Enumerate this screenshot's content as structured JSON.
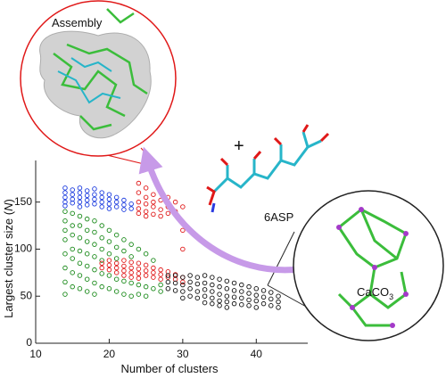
{
  "chart_data": {
    "type": "scatter",
    "xlabel": "Number of clusters",
    "ylabel": [
      "Largest cluster size (",
      "N",
      ")"
    ],
    "annotations": {
      "assembly": "Assembly",
      "plus": "+",
      "asp": "6ASP",
      "caco3": [
        "CaCO",
        "3"
      ]
    },
    "xlim": [
      10,
      47
    ],
    "xticks": [
      10,
      20,
      30,
      40
    ],
    "ylim": [
      0,
      180
    ],
    "yticks": [
      0,
      50,
      100,
      150
    ],
    "series": [
      {
        "color": "#1a8a1a",
        "x": [
          14,
          14,
          14,
          14,
          14,
          14,
          14,
          14,
          15,
          15,
          15,
          15,
          15,
          15,
          15,
          16,
          16,
          16,
          16,
          16,
          16,
          16,
          17,
          17,
          17,
          17,
          17,
          17,
          17,
          18,
          18,
          18,
          18,
          18,
          18,
          18,
          19,
          19,
          19,
          19,
          19,
          19,
          20,
          20,
          20,
          20,
          20,
          21,
          21,
          21,
          21,
          21,
          22,
          22,
          22,
          22,
          23,
          23,
          23,
          23,
          24,
          24,
          24,
          25,
          25,
          25,
          26,
          26,
          27,
          27
        ],
        "values": [
          140,
          130,
          120,
          110,
          95,
          80,
          65,
          52,
          138,
          125,
          115,
          100,
          90,
          75,
          60,
          135,
          125,
          112,
          98,
          85,
          72,
          58,
          132,
          120,
          108,
          95,
          82,
          68,
          55,
          130,
          118,
          105,
          92,
          78,
          64,
          52,
          125,
          112,
          100,
          88,
          74,
          60,
          120,
          108,
          95,
          72,
          58,
          115,
          102,
          90,
          68,
          55,
          110,
          98,
          66,
          52,
          105,
          92,
          64,
          50,
          100,
          62,
          52,
          95,
          60,
          50,
          88,
          58,
          62,
          55
        ]
      },
      {
        "color": "#1a3adf",
        "x": [
          14,
          14,
          14,
          14,
          14,
          15,
          15,
          15,
          15,
          16,
          16,
          16,
          16,
          16,
          17,
          17,
          17,
          17,
          18,
          18,
          18,
          18,
          19,
          19,
          19,
          19,
          20,
          20,
          20,
          20,
          21,
          21,
          21,
          22,
          22,
          22,
          23,
          23
        ],
        "values": [
          165,
          160,
          155,
          150,
          146,
          163,
          158,
          153,
          149,
          165,
          160,
          155,
          150,
          145,
          162,
          157,
          152,
          147,
          164,
          158,
          153,
          148,
          160,
          155,
          150,
          145,
          158,
          153,
          148,
          143,
          155,
          150,
          145,
          152,
          147,
          142,
          148,
          143
        ]
      },
      {
        "color": "#e01818",
        "x": [
          19,
          19,
          20,
          20,
          20,
          21,
          21,
          21,
          22,
          22,
          22,
          22,
          23,
          23,
          23,
          23,
          24,
          24,
          24,
          24,
          24,
          24,
          24,
          24,
          24,
          25,
          25,
          25,
          25,
          25,
          25,
          25,
          25,
          26,
          26,
          26,
          26,
          26,
          26,
          26,
          27,
          27,
          27,
          27,
          27,
          27,
          27,
          28,
          28,
          28,
          28,
          28,
          29,
          29,
          29,
          29,
          30,
          30,
          30,
          30,
          30
        ],
        "values": [
          85,
          80,
          88,
          83,
          78,
          85,
          80,
          75,
          88,
          82,
          77,
          72,
          86,
          80,
          75,
          70,
          170,
          160,
          150,
          143,
          138,
          85,
          79,
          74,
          69,
          165,
          155,
          148,
          140,
          135,
          83,
          77,
          72,
          158,
          150,
          145,
          137,
          80,
          75,
          70,
          162,
          152,
          142,
          135,
          78,
          73,
          68,
          155,
          145,
          138,
          76,
          70,
          150,
          140,
          73,
          68,
          145,
          120,
          100,
          70,
          65
        ]
      },
      {
        "color": "#111111",
        "x": [
          28,
          28,
          28,
          29,
          29,
          29,
          30,
          30,
          30,
          30,
          31,
          31,
          31,
          31,
          32,
          32,
          32,
          32,
          33,
          33,
          33,
          33,
          33,
          34,
          34,
          34,
          34,
          34,
          35,
          35,
          35,
          35,
          35,
          36,
          36,
          36,
          36,
          36,
          37,
          37,
          37,
          37,
          38,
          38,
          38,
          38,
          39,
          39,
          39,
          39,
          40,
          40,
          40,
          40,
          41,
          41,
          41,
          42,
          42,
          42,
          43,
          43,
          43
        ],
        "values": [
          72,
          65,
          58,
          72,
          64,
          56,
          70,
          62,
          55,
          48,
          72,
          65,
          58,
          50,
          70,
          63,
          55,
          48,
          72,
          64,
          57,
          50,
          43,
          70,
          62,
          55,
          48,
          42,
          68,
          60,
          52,
          45,
          40,
          66,
          58,
          50,
          44,
          38,
          64,
          56,
          49,
          42,
          62,
          55,
          48,
          41,
          60,
          53,
          46,
          40,
          58,
          51,
          45,
          38,
          56,
          49,
          42,
          54,
          47,
          40,
          50,
          44,
          38
        ]
      }
    ]
  }
}
